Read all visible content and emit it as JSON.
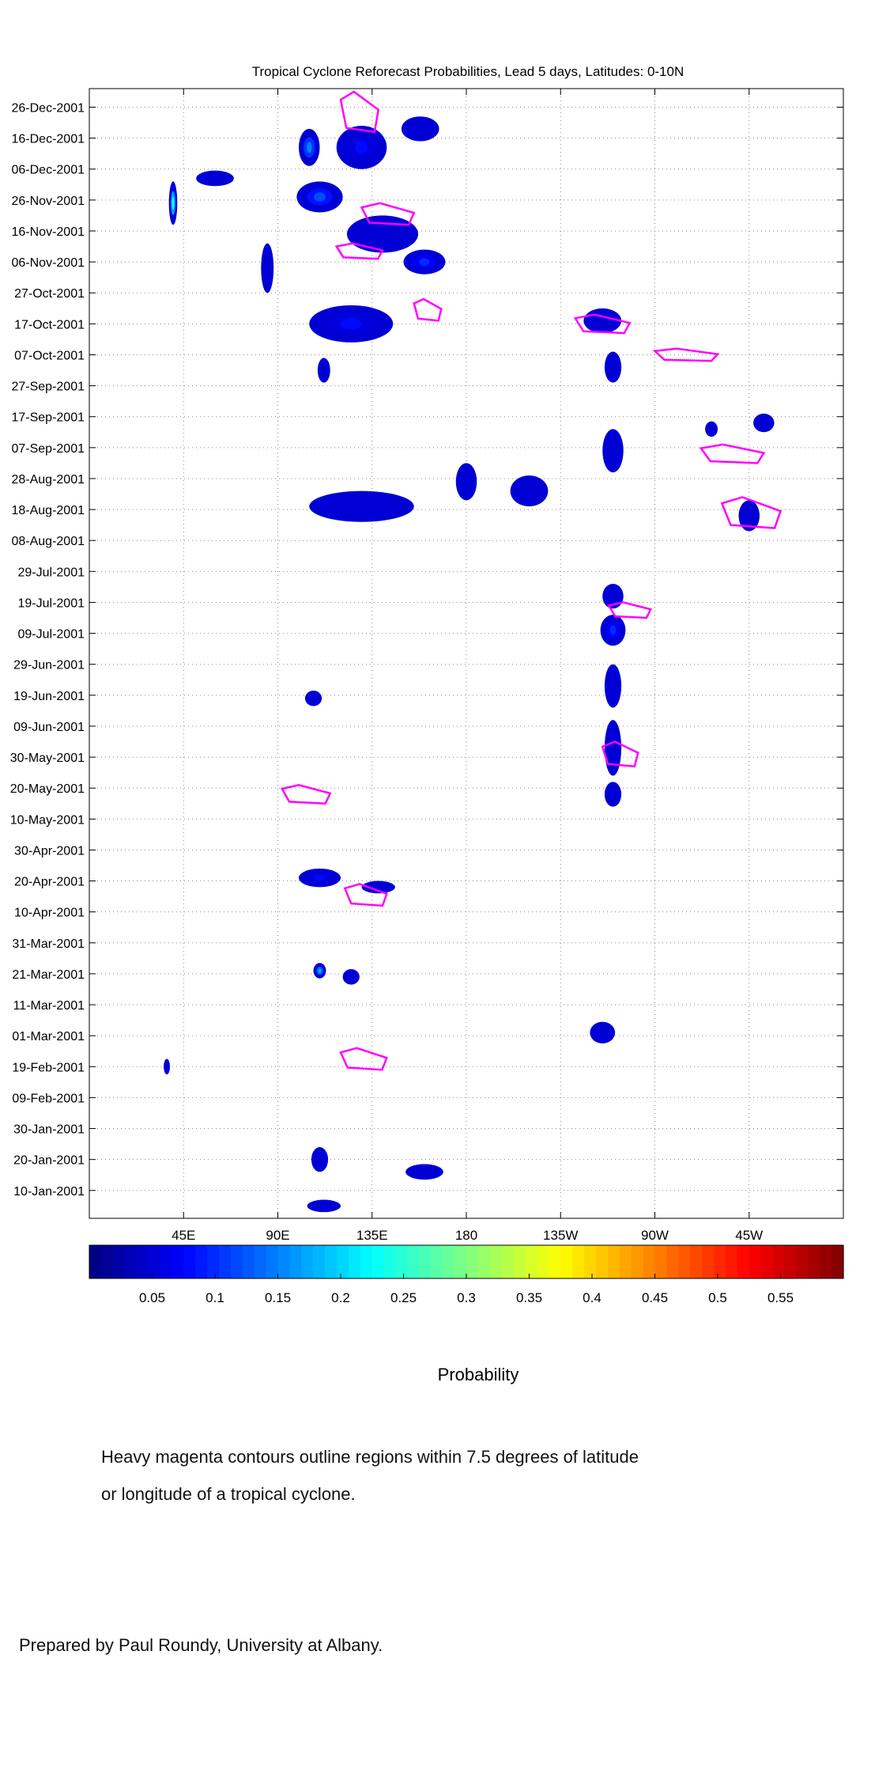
{
  "chart_data": {
    "type": "heatmap",
    "title": "Tropical Cyclone Reforecast Probabilities, Lead 5 days, Latitudes: 0-10N",
    "xlabel": "",
    "ylabel": "",
    "x_range_lon": [
      0,
      360
    ],
    "y_range_days_2001": [
      0,
      365
    ],
    "x_ticks": [
      {
        "lon": 45,
        "label": "45E"
      },
      {
        "lon": 90,
        "label": "90E"
      },
      {
        "lon": 135,
        "label": "135E"
      },
      {
        "lon": 180,
        "label": "180"
      },
      {
        "lon": 225,
        "label": "135W"
      },
      {
        "lon": 270,
        "label": "90W"
      },
      {
        "lon": 315,
        "label": "45W"
      }
    ],
    "y_ticks": [
      {
        "date": "2001-01-10",
        "label": "10-Jan-2001"
      },
      {
        "date": "2001-01-20",
        "label": "20-Jan-2001"
      },
      {
        "date": "2001-01-30",
        "label": "30-Jan-2001"
      },
      {
        "date": "2001-02-09",
        "label": "09-Feb-2001"
      },
      {
        "date": "2001-02-19",
        "label": "19-Feb-2001"
      },
      {
        "date": "2001-03-01",
        "label": "01-Mar-2001"
      },
      {
        "date": "2001-03-11",
        "label": "11-Mar-2001"
      },
      {
        "date": "2001-03-21",
        "label": "21-Mar-2001"
      },
      {
        "date": "2001-03-31",
        "label": "31-Mar-2001"
      },
      {
        "date": "2001-04-10",
        "label": "10-Apr-2001"
      },
      {
        "date": "2001-04-20",
        "label": "20-Apr-2001"
      },
      {
        "date": "2001-04-30",
        "label": "30-Apr-2001"
      },
      {
        "date": "2001-05-10",
        "label": "10-May-2001"
      },
      {
        "date": "2001-05-20",
        "label": "20-May-2001"
      },
      {
        "date": "2001-05-30",
        "label": "30-May-2001"
      },
      {
        "date": "2001-06-09",
        "label": "09-Jun-2001"
      },
      {
        "date": "2001-06-19",
        "label": "19-Jun-2001"
      },
      {
        "date": "2001-06-29",
        "label": "29-Jun-2001"
      },
      {
        "date": "2001-07-09",
        "label": "09-Jul-2001"
      },
      {
        "date": "2001-07-19",
        "label": "19-Jul-2001"
      },
      {
        "date": "2001-07-29",
        "label": "29-Jul-2001"
      },
      {
        "date": "2001-08-08",
        "label": "08-Aug-2001"
      },
      {
        "date": "2001-08-18",
        "label": "18-Aug-2001"
      },
      {
        "date": "2001-08-28",
        "label": "28-Aug-2001"
      },
      {
        "date": "2001-09-07",
        "label": "07-Sep-2001"
      },
      {
        "date": "2001-09-17",
        "label": "17-Sep-2001"
      },
      {
        "date": "2001-09-27",
        "label": "27-Sep-2001"
      },
      {
        "date": "2001-10-07",
        "label": "07-Oct-2001"
      },
      {
        "date": "2001-10-17",
        "label": "17-Oct-2001"
      },
      {
        "date": "2001-10-27",
        "label": "27-Oct-2001"
      },
      {
        "date": "2001-11-06",
        "label": "06-Nov-2001"
      },
      {
        "date": "2001-11-16",
        "label": "16-Nov-2001"
      },
      {
        "date": "2001-11-26",
        "label": "26-Nov-2001"
      },
      {
        "date": "2001-12-06",
        "label": "06-Dec-2001"
      },
      {
        "date": "2001-12-16",
        "label": "16-Dec-2001"
      },
      {
        "date": "2001-12-26",
        "label": "26-Dec-2001"
      }
    ],
    "grid": true,
    "colorbar": {
      "range": [
        0,
        0.6
      ],
      "ticks": [
        0.05,
        0.1,
        0.15,
        0.2,
        0.25,
        0.3,
        0.35,
        0.4,
        0.45,
        0.5,
        0.55
      ],
      "tick_labels": [
        "0.05",
        "0.1",
        "0.15",
        "0.2",
        "0.25",
        "0.3",
        "0.35",
        "0.4",
        "0.45",
        "0.5",
        "0.55"
      ],
      "label": "Probability",
      "colormap": "jet"
    },
    "probability_blobs": [
      {
        "lon": 105,
        "day": 346,
        "w": 10,
        "h": 12,
        "p": 0.15
      },
      {
        "lon": 130,
        "day": 346,
        "w": 24,
        "h": 14,
        "p": 0.08
      },
      {
        "lon": 158,
        "day": 352,
        "w": 18,
        "h": 8,
        "p": 0.06
      },
      {
        "lon": 40,
        "day": 328,
        "w": 4,
        "h": 14,
        "p": 0.24
      },
      {
        "lon": 60,
        "day": 336,
        "w": 18,
        "h": 5,
        "p": 0.04
      },
      {
        "lon": 110,
        "day": 330,
        "w": 22,
        "h": 10,
        "p": 0.12
      },
      {
        "lon": 140,
        "day": 318,
        "w": 34,
        "h": 12,
        "p": 0.07
      },
      {
        "lon": 160,
        "day": 309,
        "w": 20,
        "h": 8,
        "p": 0.1
      },
      {
        "lon": 85,
        "day": 307,
        "w": 6,
        "h": 16,
        "p": 0.06
      },
      {
        "lon": 125,
        "day": 289,
        "w": 40,
        "h": 12,
        "p": 0.08
      },
      {
        "lon": 112,
        "day": 274,
        "w": 6,
        "h": 8,
        "p": 0.04
      },
      {
        "lon": 245,
        "day": 290,
        "w": 18,
        "h": 8,
        "p": 0.07
      },
      {
        "lon": 250,
        "day": 275,
        "w": 8,
        "h": 10,
        "p": 0.05
      },
      {
        "lon": 250,
        "day": 248,
        "w": 10,
        "h": 14,
        "p": 0.06
      },
      {
        "lon": 297,
        "day": 255,
        "w": 6,
        "h": 5,
        "p": 0.04
      },
      {
        "lon": 322,
        "day": 257,
        "w": 10,
        "h": 6,
        "p": 0.04
      },
      {
        "lon": 315,
        "day": 227,
        "w": 10,
        "h": 10,
        "p": 0.05
      },
      {
        "lon": 130,
        "day": 230,
        "w": 50,
        "h": 10,
        "p": 0.07
      },
      {
        "lon": 180,
        "day": 238,
        "w": 10,
        "h": 12,
        "p": 0.05
      },
      {
        "lon": 210,
        "day": 235,
        "w": 18,
        "h": 10,
        "p": 0.05
      },
      {
        "lon": 250,
        "day": 201,
        "w": 10,
        "h": 8,
        "p": 0.05
      },
      {
        "lon": 250,
        "day": 190,
        "w": 12,
        "h": 10,
        "p": 0.1
      },
      {
        "lon": 250,
        "day": 172,
        "w": 8,
        "h": 14,
        "p": 0.06
      },
      {
        "lon": 250,
        "day": 152,
        "w": 8,
        "h": 18,
        "p": 0.07
      },
      {
        "lon": 250,
        "day": 137,
        "w": 8,
        "h": 8,
        "p": 0.05
      },
      {
        "lon": 107,
        "day": 168,
        "w": 8,
        "h": 5,
        "p": 0.05
      },
      {
        "lon": 110,
        "day": 110,
        "w": 20,
        "h": 6,
        "p": 0.08
      },
      {
        "lon": 138,
        "day": 107,
        "w": 16,
        "h": 4,
        "p": 0.05
      },
      {
        "lon": 110,
        "day": 80,
        "w": 6,
        "h": 5,
        "p": 0.18
      },
      {
        "lon": 125,
        "day": 78,
        "w": 8,
        "h": 5,
        "p": 0.05
      },
      {
        "lon": 245,
        "day": 60,
        "w": 12,
        "h": 7,
        "p": 0.07
      },
      {
        "lon": 37,
        "day": 49,
        "w": 3,
        "h": 5,
        "p": 0.05
      },
      {
        "lon": 110,
        "day": 19,
        "w": 8,
        "h": 8,
        "p": 0.05
      },
      {
        "lon": 160,
        "day": 15,
        "w": 18,
        "h": 5,
        "p": 0.06
      },
      {
        "lon": 112,
        "day": 4,
        "w": 16,
        "h": 4,
        "p": 0.05
      }
    ],
    "tc_contours": [
      {
        "lon": [
          120,
          138
        ],
        "day": [
          351,
          364
        ]
      },
      {
        "lon": [
          130,
          155
        ],
        "day": [
          321,
          328
        ]
      },
      {
        "lon": [
          118,
          140
        ],
        "day": [
          310,
          315
        ]
      },
      {
        "lon": [
          155,
          168
        ],
        "day": [
          290,
          297
        ]
      },
      {
        "lon": [
          232,
          258
        ],
        "day": [
          286,
          292
        ]
      },
      {
        "lon": [
          270,
          300
        ],
        "day": [
          277,
          281
        ]
      },
      {
        "lon": [
          292,
          322
        ],
        "day": [
          244,
          250
        ]
      },
      {
        "lon": [
          302,
          330
        ],
        "day": [
          223,
          233
        ]
      },
      {
        "lon": [
          122,
          142
        ],
        "day": [
          101,
          108
        ]
      },
      {
        "lon": [
          92,
          115
        ],
        "day": [
          134,
          140
        ]
      },
      {
        "lon": [
          120,
          142
        ],
        "day": [
          48,
          55
        ]
      },
      {
        "lon": [
          245,
          262
        ],
        "day": [
          146,
          154
        ]
      },
      {
        "lon": [
          248,
          268
        ],
        "day": [
          194,
          199
        ]
      }
    ]
  },
  "notes": {
    "caption_line1": "Heavy magenta contours outline regions within 7.5 degrees of latitude",
    "caption_line2": "or longitude of a tropical cyclone.",
    "credit": "Prepared by Paul Roundy, University at Albany."
  }
}
